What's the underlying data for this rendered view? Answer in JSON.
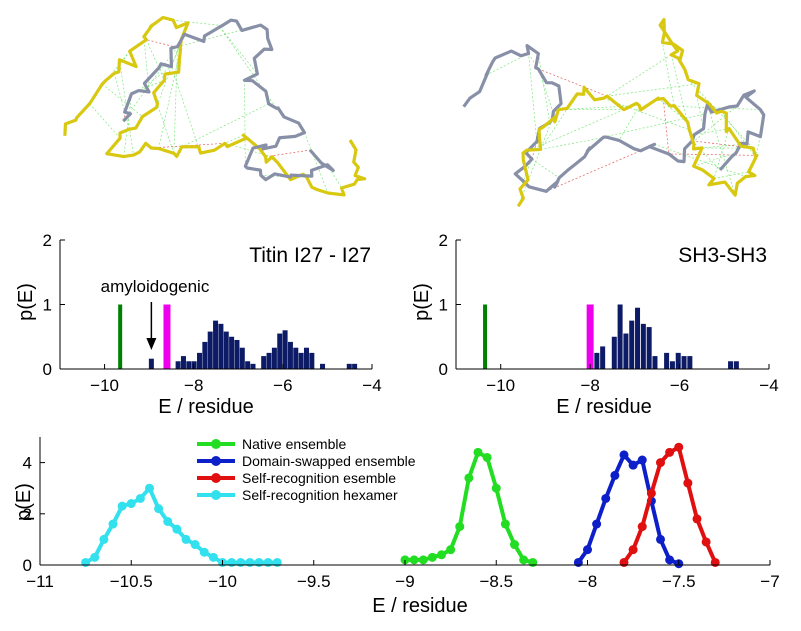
{
  "colors": {
    "native": "#22dd22",
    "swapped": "#0d1fc8",
    "selfrec": "#e01010",
    "hexamer": "#33e0ee",
    "bars": "#0d1a66",
    "magenta": "#ee00ee",
    "structure_grey": "#8890a8",
    "structure_yellow": "#d8c810",
    "contact_green": "#5ce05c",
    "contact_red": "#e03030"
  },
  "structures": [
    {
      "name": "titin-i27-dimer-structure"
    },
    {
      "name": "sh3-dimer-structure"
    }
  ],
  "chart_data": [
    {
      "type": "bar",
      "title": "Titin I27 - I27",
      "xlabel": "E / residue",
      "ylabel": "p(E)",
      "xlim": [
        -11,
        -4
      ],
      "ylim": [
        0,
        2
      ],
      "xticks": [
        "-10",
        "-8",
        "-6",
        "-4"
      ],
      "xtick_values": [
        -10,
        -8,
        -6,
        -4
      ],
      "yticks": [
        "0",
        "1",
        "2"
      ],
      "ytick_values": [
        0,
        1,
        2
      ],
      "annotation": "amyloidogenic",
      "annotation_x": -8.95,
      "markers": [
        {
          "x": -9.65,
          "value": 1,
          "color": "green"
        },
        {
          "x": -8.6,
          "value": 1,
          "color": "magenta"
        }
      ],
      "bins_x": [
        -8.95,
        -8.35,
        -8.23,
        -8.11,
        -7.99,
        -7.87,
        -7.75,
        -7.63,
        -7.51,
        -7.39,
        -7.27,
        -7.15,
        -7.03,
        -6.91,
        -6.79,
        -6.67,
        -6.43,
        -6.31,
        -6.19,
        -6.07,
        -5.95,
        -5.83,
        -5.71,
        -5.59,
        -5.47,
        -5.35,
        -5.11,
        -4.51,
        -4.39
      ],
      "bins_value": [
        0.16,
        0.12,
        0.2,
        0.12,
        0.12,
        0.25,
        0.42,
        0.58,
        0.75,
        0.7,
        0.58,
        0.5,
        0.45,
        0.33,
        0.12,
        0.08,
        0.2,
        0.25,
        0.33,
        0.55,
        0.6,
        0.42,
        0.33,
        0.25,
        0.33,
        0.25,
        0.08,
        0.08,
        0.08
      ]
    },
    {
      "type": "bar",
      "title": "SH3-SH3",
      "xlabel": "E / residue",
      "ylabel": "p(E)",
      "xlim": [
        -11,
        -4
      ],
      "ylim": [
        0,
        2
      ],
      "xticks": [
        "-10",
        "-8",
        "-6",
        "-4"
      ],
      "xtick_values": [
        -10,
        -8,
        -6,
        -4
      ],
      "yticks": [
        "0",
        "1",
        "2"
      ],
      "ytick_values": [
        0,
        1,
        2
      ],
      "markers": [
        {
          "x": -10.35,
          "value": 1,
          "color": "green"
        },
        {
          "x": -8.0,
          "value": 1,
          "color": "magenta"
        }
      ],
      "bins_x": [
        -7.85,
        -7.72,
        -7.46,
        -7.33,
        -7.2,
        -7.07,
        -6.94,
        -6.81,
        -6.68,
        -6.55,
        -6.29,
        -6.16,
        -6.03,
        -5.9,
        -5.77,
        -4.86,
        -4.73
      ],
      "bins_value": [
        0.25,
        0.35,
        0.5,
        1.0,
        0.55,
        0.75,
        0.95,
        0.7,
        0.65,
        0.2,
        0.25,
        0.12,
        0.25,
        0.2,
        0.2,
        0.12,
        0.12
      ]
    },
    {
      "type": "line",
      "xlabel": "E / residue",
      "ylabel": "p(E)",
      "xlim": [
        -11,
        -7
      ],
      "ylim": [
        0,
        5
      ],
      "xticks": [
        "-11",
        "-10.5",
        "-10",
        "-9.5",
        "-9",
        "-8.5",
        "-8",
        "-7.5",
        "-7"
      ],
      "xtick_values": [
        -11,
        -10.5,
        -10,
        -9.5,
        -9,
        -8.5,
        -8,
        -7.5,
        -7
      ],
      "yticks": [
        "0",
        "2",
        "4"
      ],
      "ytick_values": [
        0,
        2,
        4
      ],
      "legend": "top-center",
      "series": [
        {
          "name": "Native ensemble",
          "color": "native",
          "x": [
            -9.0,
            -8.95,
            -8.9,
            -8.85,
            -8.8,
            -8.75,
            -8.7,
            -8.65,
            -8.6,
            -8.55,
            -8.5,
            -8.45,
            -8.4,
            -8.35,
            -8.3
          ],
          "y": [
            0.2,
            0.2,
            0.2,
            0.3,
            0.4,
            0.6,
            1.5,
            3.4,
            4.4,
            4.2,
            3.0,
            1.6,
            0.8,
            0.2,
            0.1
          ]
        },
        {
          "name": "Domain-swapped ensemble",
          "color": "swapped",
          "x": [
            -8.05,
            -8.0,
            -7.95,
            -7.9,
            -7.85,
            -7.8,
            -7.75,
            -7.7,
            -7.65,
            -7.6,
            -7.55,
            -7.5
          ],
          "y": [
            0.1,
            0.6,
            1.6,
            2.6,
            3.5,
            4.3,
            3.9,
            4.1,
            2.5,
            1.0,
            0.2,
            0.05
          ]
        },
        {
          "name": "Self-recognition esemble",
          "color": "selfrec",
          "x": [
            -7.8,
            -7.75,
            -7.7,
            -7.65,
            -7.6,
            -7.55,
            -7.5,
            -7.45,
            -7.4,
            -7.35,
            -7.3
          ],
          "y": [
            0.1,
            0.6,
            1.5,
            2.8,
            4.0,
            4.4,
            4.6,
            3.2,
            1.8,
            0.9,
            0.1
          ]
        },
        {
          "name": "Self-recognition hexamer",
          "color": "hexamer",
          "x": [
            -10.75,
            -10.7,
            -10.65,
            -10.6,
            -10.55,
            -10.5,
            -10.45,
            -10.4,
            -10.35,
            -10.3,
            -10.25,
            -10.2,
            -10.15,
            -10.1,
            -10.05,
            -10.0,
            -9.95,
            -9.9,
            -9.85,
            -9.8,
            -9.75,
            -9.7
          ],
          "y": [
            0.1,
            0.3,
            1.0,
            1.6,
            2.3,
            2.4,
            2.6,
            3.0,
            2.2,
            1.7,
            1.4,
            1.0,
            0.8,
            0.5,
            0.3,
            0.1,
            0.1,
            0.1,
            0.1,
            0.1,
            0.1,
            0.1
          ]
        }
      ]
    }
  ]
}
